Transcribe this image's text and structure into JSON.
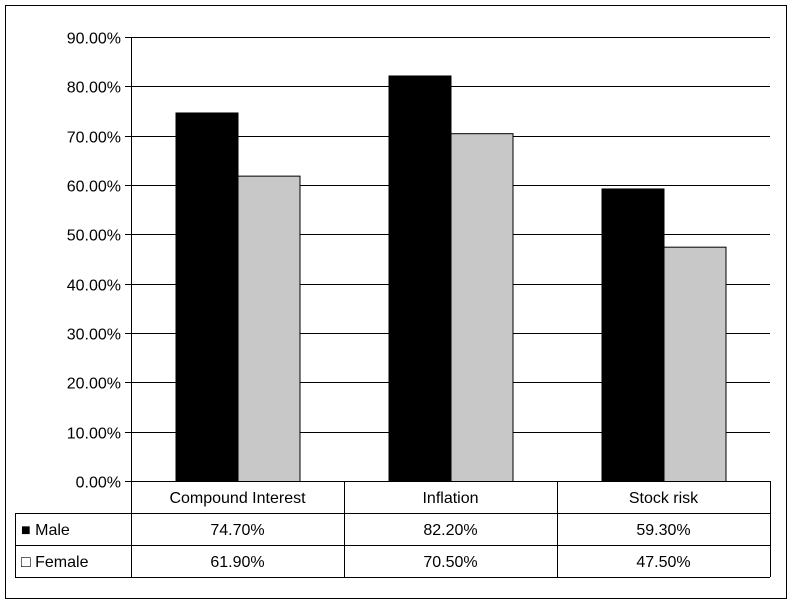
{
  "chart_data": {
    "type": "bar",
    "categories": [
      "Compound Interest",
      "Inflation",
      "Stock risk"
    ],
    "series": [
      {
        "name": "Male",
        "values": [
          74.7,
          82.2,
          59.3
        ],
        "value_labels": [
          "74.70%",
          "82.20%",
          "59.30%"
        ],
        "color": "#000000",
        "legend_marker": "■"
      },
      {
        "name": "Female",
        "values": [
          61.9,
          70.5,
          47.5
        ],
        "value_labels": [
          "61.90%",
          "70.50%",
          "47.50%"
        ],
        "color": "#c8c8c8",
        "legend_marker": "□"
      }
    ],
    "ylim": [
      0,
      90
    ],
    "yticks": [
      "0.00%",
      "10.00%",
      "20.00%",
      "30.00%",
      "40.00%",
      "50.00%",
      "60.00%",
      "70.00%",
      "80.00%",
      "90.00%"
    ],
    "grid": true,
    "data_table": true
  }
}
